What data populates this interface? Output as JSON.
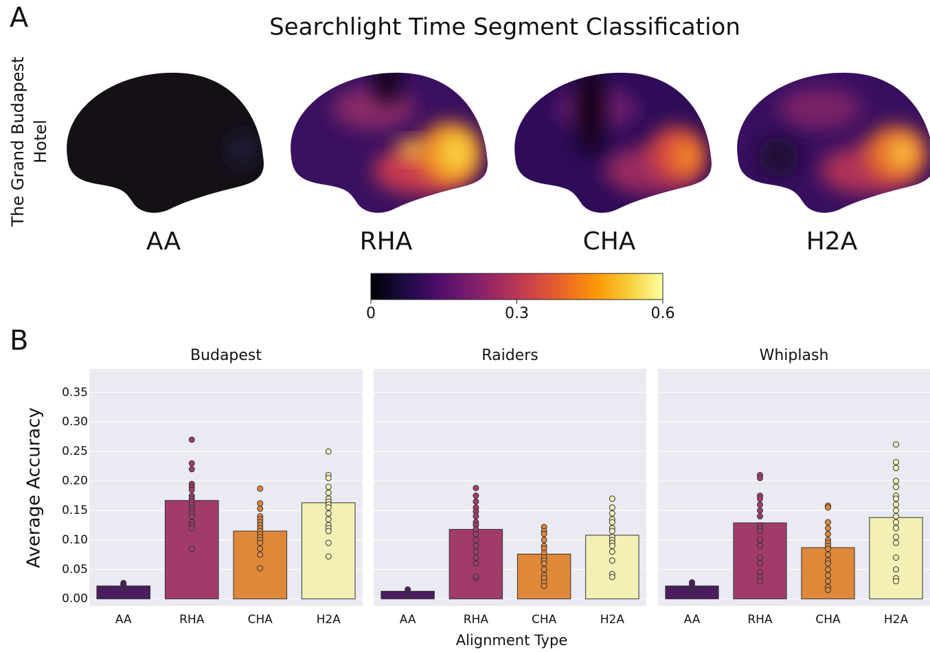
{
  "panel_a": {
    "label": "A",
    "title": "Searchlight Time Segment Classification",
    "row_label": [
      "The Grand Budapest",
      "Hotel"
    ],
    "maps": [
      "AA",
      "RHA",
      "CHA",
      "H2A"
    ],
    "colorbar": {
      "lim": [
        0,
        0.6
      ],
      "ticks": [
        0,
        0.3,
        0.6
      ],
      "colors": [
        "#000004",
        "#1b0c41",
        "#4a0c6b",
        "#781c6d",
        "#a52c60",
        "#cf4446",
        "#ed6925",
        "#fb9b06",
        "#f7d13d",
        "#fcffa4"
      ]
    }
  },
  "panel_b": {
    "label": "B",
    "ylabel": "Average Accuracy",
    "xlabel": "Alignment Type",
    "ylim": [
      -0.012,
      0.39
    ],
    "yticks": [
      {
        "value": 0,
        "label": "0.00"
      },
      {
        "value": 0.05,
        "label": "0.05"
      },
      {
        "value": 0.1,
        "label": "0.10"
      },
      {
        "value": 0.15,
        "label": "0.15"
      },
      {
        "value": 0.2,
        "label": "0.20"
      },
      {
        "value": 0.25,
        "label": "0.25"
      },
      {
        "value": 0.3,
        "label": "0.30"
      },
      {
        "value": 0.35,
        "label": "0.35"
      }
    ],
    "grid": true
  },
  "chart_data": [
    {
      "type": "bar",
      "title": "Budapest",
      "categories": [
        "AA",
        "RHA",
        "CHA",
        "H2A"
      ],
      "values": [
        0.022,
        0.167,
        0.115,
        0.163
      ],
      "colors": [
        "#4b1c5e",
        "#a13c6a",
        "#e0883a",
        "#f2f0b5"
      ],
      "points": [
        [
          0.018,
          0.021,
          0.024,
          0.027,
          0.02,
          0.025
        ],
        [
          0.27,
          0.23,
          0.22,
          0.195,
          0.19,
          0.185,
          0.175,
          0.17,
          0.165,
          0.16,
          0.155,
          0.15,
          0.145,
          0.14,
          0.13,
          0.125,
          0.12,
          0.085
        ],
        [
          0.187,
          0.162,
          0.153,
          0.14,
          0.135,
          0.13,
          0.125,
          0.12,
          0.115,
          0.11,
          0.105,
          0.1,
          0.095,
          0.085,
          0.075,
          0.052
        ],
        [
          0.25,
          0.21,
          0.205,
          0.19,
          0.18,
          0.17,
          0.165,
          0.16,
          0.155,
          0.145,
          0.135,
          0.125,
          0.12,
          0.115,
          0.095,
          0.072
        ]
      ]
    },
    {
      "type": "bar",
      "title": "Raiders",
      "categories": [
        "AA",
        "RHA",
        "CHA",
        "H2A"
      ],
      "values": [
        0.013,
        0.118,
        0.076,
        0.108
      ],
      "colors": [
        "#4b1c5e",
        "#a13c6a",
        "#e0883a",
        "#f2f0b5"
      ],
      "points": [
        [
          0.01,
          0.013,
          0.016,
          0.012
        ],
        [
          0.188,
          0.175,
          0.165,
          0.155,
          0.148,
          0.14,
          0.13,
          0.125,
          0.118,
          0.11,
          0.1,
          0.09,
          0.08,
          0.07,
          0.06,
          0.035,
          0.038
        ],
        [
          0.122,
          0.115,
          0.11,
          0.1,
          0.09,
          0.085,
          0.078,
          0.07,
          0.065,
          0.06,
          0.05,
          0.04,
          0.035,
          0.028,
          0.022
        ],
        [
          0.17,
          0.155,
          0.145,
          0.135,
          0.13,
          0.12,
          0.115,
          0.105,
          0.1,
          0.095,
          0.09,
          0.08,
          0.065,
          0.042,
          0.037
        ]
      ]
    },
    {
      "type": "bar",
      "title": "Whiplash",
      "categories": [
        "AA",
        "RHA",
        "CHA",
        "H2A"
      ],
      "values": [
        0.022,
        0.129,
        0.087,
        0.138
      ],
      "colors": [
        "#4b1c5e",
        "#a13c6a",
        "#e0883a",
        "#f2f0b5"
      ],
      "points": [
        [
          0.015,
          0.02,
          0.025,
          0.028,
          0.018
        ],
        [
          0.21,
          0.205,
          0.175,
          0.17,
          0.16,
          0.15,
          0.14,
          0.125,
          0.12,
          0.115,
          0.1,
          0.09,
          0.07,
          0.06,
          0.045,
          0.037,
          0.03
        ],
        [
          0.158,
          0.155,
          0.13,
          0.12,
          0.11,
          0.1,
          0.095,
          0.09,
          0.085,
          0.075,
          0.065,
          0.06,
          0.05,
          0.04,
          0.03,
          0.02,
          0.015
        ],
        [
          0.262,
          0.232,
          0.222,
          0.2,
          0.19,
          0.175,
          0.17,
          0.16,
          0.15,
          0.14,
          0.13,
          0.12,
          0.105,
          0.095,
          0.07,
          0.05,
          0.035,
          0.03
        ]
      ]
    }
  ]
}
